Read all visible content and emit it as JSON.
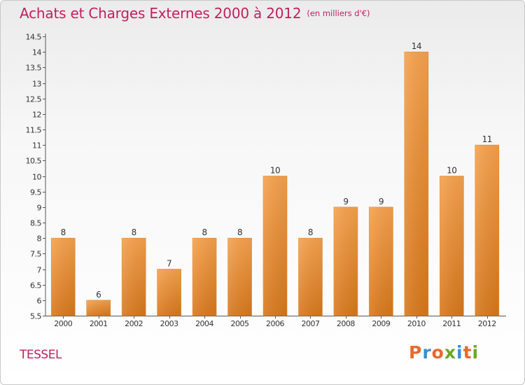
{
  "header": {
    "title": "Achats et Charges Externes 2000 à 2012",
    "unit": "(en milliers d'€)"
  },
  "footer": {
    "commune": "TESSEL",
    "logo_text": "Proxiti"
  },
  "colors": {
    "title": "#c21f5c",
    "bar_light": "#f6a24d",
    "bar_dark": "#d8781c",
    "axis": "#555555",
    "logo": [
      "#e8692b",
      "#3b8ec9",
      "#e8692b",
      "#6aa823",
      "#3b8ec9",
      "#e8692b",
      "#6aa823"
    ]
  },
  "chart_data": {
    "type": "bar",
    "title": "Achats et Charges Externes 2000 à 2012",
    "xlabel": "",
    "ylabel": "",
    "categories": [
      "2000",
      "2001",
      "2002",
      "2003",
      "2004",
      "2005",
      "2006",
      "2007",
      "2008",
      "2009",
      "2010",
      "2011",
      "2012"
    ],
    "values": [
      8,
      6,
      8,
      7,
      8,
      8,
      10,
      8,
      9,
      9,
      14,
      10,
      11
    ],
    "value_labels": [
      "8",
      "6",
      "8",
      "7",
      "8",
      "8",
      "10",
      "8",
      "9",
      "9",
      "14",
      "10",
      "11"
    ],
    "ylim": [
      5.5,
      14.5
    ],
    "yticks": [
      5.5,
      6,
      6.5,
      7,
      7.5,
      8,
      8.5,
      9,
      9.5,
      10,
      10.5,
      11,
      11.5,
      12,
      12.5,
      13,
      13.5,
      14,
      14.5
    ],
    "ytick_labels": [
      "5.5",
      "6",
      "6.5",
      "7",
      "7.5",
      "8",
      "8.5",
      "9",
      "9.5",
      "10",
      "10.5",
      "11",
      "11.5",
      "12",
      "12.5",
      "13",
      "13.5",
      "14",
      "14.5"
    ],
    "grid": false,
    "legend": "none"
  }
}
